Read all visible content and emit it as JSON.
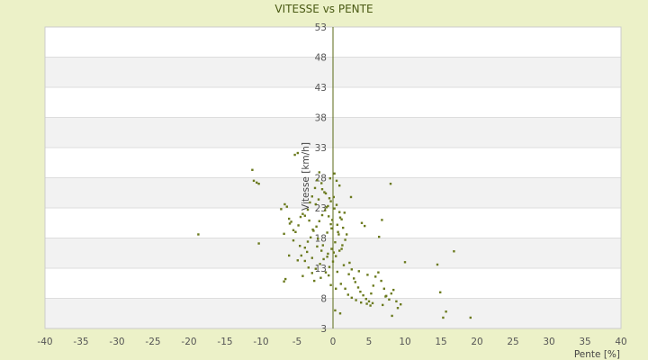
{
  "chart_data": {
    "type": "scatter",
    "title": "VITESSE vs PENTE",
    "xlabel": "Pente [%]",
    "ylabel": "Vitesse [km/h]",
    "xlim": [
      -40,
      40
    ],
    "ylim": [
      3,
      53
    ],
    "xticks": [
      -40,
      -35,
      -30,
      -25,
      -20,
      -15,
      -10,
      -5,
      0,
      5,
      10,
      15,
      20,
      25,
      30,
      35,
      40
    ],
    "yticks": [
      3,
      8,
      13,
      18,
      23,
      28,
      33,
      38,
      43,
      48,
      53
    ],
    "grid": "horizontal alternating bands",
    "colors": {
      "background": "#ecf1c8",
      "plot_band_light": "#ffffff",
      "plot_band_dark": "#f2f2f2",
      "grid_line": "#dddddd",
      "axis": "#5a6a14",
      "marker": "#6b7a1e"
    },
    "series": [
      {
        "points": [
          [
            -11.2,
            29.3
          ],
          [
            -11.0,
            27.5
          ],
          [
            -10.6,
            27.2
          ],
          [
            -10.3,
            27.0
          ],
          [
            -18.7,
            18.6
          ],
          [
            -10.3,
            17.1
          ],
          [
            -7.2,
            22.8
          ],
          [
            -6.7,
            23.6
          ],
          [
            -6.4,
            23.2
          ],
          [
            -6.1,
            21.2
          ],
          [
            -6.0,
            20.4
          ],
          [
            -5.8,
            20.7
          ],
          [
            -5.5,
            19.3
          ],
          [
            -5.2,
            19.0
          ],
          [
            -4.8,
            20.1
          ],
          [
            -4.5,
            21.5
          ],
          [
            -4.2,
            22.0
          ],
          [
            -3.9,
            21.7
          ],
          [
            -3.5,
            22.7
          ],
          [
            -3.2,
            23.9
          ],
          [
            -2.9,
            24.9
          ],
          [
            -2.5,
            26.3
          ],
          [
            -2.2,
            27.6
          ],
          [
            -1.9,
            28.9
          ],
          [
            -1.6,
            27.1
          ],
          [
            -1.2,
            25.6
          ],
          [
            -0.9,
            23.1
          ],
          [
            -0.6,
            21.6
          ],
          [
            -0.3,
            20.3
          ],
          [
            -5.3,
            31.8
          ],
          [
            -4.9,
            32.1
          ],
          [
            -6.1,
            15.1
          ],
          [
            -6.8,
            18.7
          ],
          [
            -3.9,
            16.4
          ],
          [
            -3.5,
            17.4
          ],
          [
            -3.1,
            18.1
          ],
          [
            -2.7,
            19.2
          ],
          [
            -2.3,
            19.9
          ],
          [
            -1.9,
            20.8
          ],
          [
            -1.5,
            21.8
          ],
          [
            -1.1,
            22.6
          ],
          [
            -0.7,
            23.3
          ],
          [
            -0.3,
            24.1
          ],
          [
            0.1,
            24.8
          ],
          [
            0.5,
            23.5
          ],
          [
            0.9,
            22.3
          ],
          [
            1.2,
            21.1
          ],
          [
            1.4,
            19.7
          ],
          [
            0.8,
            18.6
          ],
          [
            0.3,
            17.3
          ],
          [
            -0.2,
            16.2
          ],
          [
            -0.7,
            15.4
          ],
          [
            -1.3,
            14.5
          ],
          [
            -1.8,
            13.7
          ],
          [
            -2.4,
            12.9
          ],
          [
            -2.9,
            12.2
          ],
          [
            -3.4,
            13.1
          ],
          [
            -3.9,
            14.2
          ],
          [
            -4.4,
            15.1
          ],
          [
            -4.9,
            14.3
          ],
          [
            -1.0,
            12.3
          ],
          [
            -0.5,
            13.2
          ],
          [
            0.0,
            14.1
          ],
          [
            0.4,
            15.0
          ],
          [
            0.9,
            15.9
          ],
          [
            1.3,
            16.8
          ],
          [
            1.7,
            17.7
          ],
          [
            1.9,
            18.6
          ],
          [
            -6.6,
            11.2
          ],
          [
            -6.8,
            10.8
          ],
          [
            -4.2,
            11.7
          ],
          [
            -2.6,
            10.9
          ],
          [
            -1.7,
            11.4
          ],
          [
            -0.6,
            11.8
          ],
          [
            0.6,
            12.4
          ],
          [
            1.5,
            13.5
          ],
          [
            2.3,
            13.9
          ],
          [
            2.6,
            12.8
          ],
          [
            3.1,
            10.7
          ],
          [
            3.5,
            9.8
          ],
          [
            3.8,
            9.1
          ],
          [
            4.2,
            8.5
          ],
          [
            4.6,
            7.9
          ],
          [
            5.0,
            7.5
          ],
          [
            5.3,
            8.8
          ],
          [
            5.6,
            10.1
          ],
          [
            5.9,
            11.6
          ],
          [
            6.3,
            12.3
          ],
          [
            6.7,
            10.9
          ],
          [
            7.1,
            9.6
          ],
          [
            7.4,
            8.4
          ],
          [
            7.8,
            7.8
          ],
          [
            8.1,
            8.8
          ],
          [
            8.4,
            9.4
          ],
          [
            8.8,
            7.5
          ],
          [
            9.0,
            6.4
          ],
          [
            8.2,
            5.1
          ],
          [
            5.2,
            6.8
          ],
          [
            4.7,
            7.1
          ],
          [
            3.9,
            7.3
          ],
          [
            3.2,
            7.7
          ],
          [
            2.6,
            8.1
          ],
          [
            2.1,
            8.6
          ],
          [
            1.7,
            9.6
          ],
          [
            6.8,
            21.0
          ],
          [
            6.4,
            18.2
          ],
          [
            4.4,
            20.0
          ],
          [
            4.0,
            20.5
          ],
          [
            2.5,
            24.8
          ],
          [
            8.0,
            27.0
          ],
          [
            0.9,
            26.7
          ],
          [
            0.5,
            27.5
          ],
          [
            0.2,
            28.7
          ],
          [
            -0.4,
            27.9
          ],
          [
            1.0,
            5.5
          ],
          [
            0.3,
            6.0
          ],
          [
            10.0,
            14.0
          ],
          [
            14.5,
            13.6
          ],
          [
            16.8,
            15.8
          ],
          [
            14.9,
            9.0
          ],
          [
            15.7,
            5.8
          ],
          [
            15.3,
            4.8
          ],
          [
            19.1,
            4.8
          ],
          [
            9.4,
            7.0
          ],
          [
            7.3,
            8.3
          ],
          [
            6.9,
            6.9
          ],
          [
            5.5,
            7.2
          ],
          [
            4.8,
            11.9
          ],
          [
            3.6,
            12.5
          ],
          [
            2.9,
            11.3
          ],
          [
            2.2,
            12.0
          ],
          [
            1.1,
            10.4
          ],
          [
            0.4,
            9.6
          ],
          [
            -0.3,
            10.2
          ],
          [
            -1.4,
            16.8
          ],
          [
            -2.1,
            17.9
          ],
          [
            -2.8,
            19.4
          ],
          [
            -3.3,
            20.9
          ],
          [
            -0.8,
            18.9
          ],
          [
            -0.2,
            19.6
          ],
          [
            0.6,
            20.2
          ],
          [
            1.0,
            21.4
          ],
          [
            1.6,
            22.2
          ],
          [
            0.2,
            22.9
          ],
          [
            -0.5,
            24.6
          ],
          [
            -1.0,
            25.4
          ],
          [
            -1.5,
            26.1
          ],
          [
            -2.0,
            24.4
          ],
          [
            -2.4,
            23.6
          ],
          [
            -0.1,
            21.0
          ],
          [
            0.7,
            19.0
          ],
          [
            1.2,
            16.2
          ],
          [
            0.1,
            15.6
          ],
          [
            -0.8,
            14.9
          ],
          [
            -1.6,
            15.9
          ],
          [
            -2.2,
            16.6
          ],
          [
            -2.9,
            14.7
          ],
          [
            -3.6,
            15.7
          ],
          [
            -4.6,
            16.7
          ],
          [
            -5.5,
            17.6
          ]
        ]
      }
    ]
  }
}
